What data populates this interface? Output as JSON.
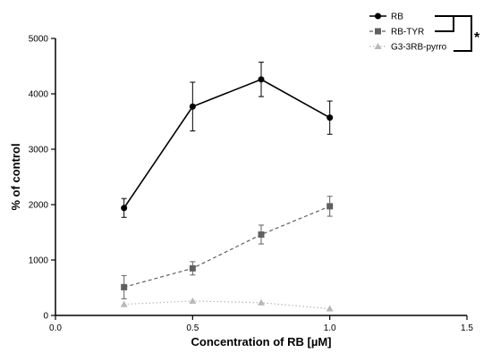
{
  "chart_data": {
    "type": "line",
    "xlabel": "Concentration of RB [µM]",
    "ylabel": "% of control",
    "xlim": [
      0,
      1.5
    ],
    "ylim": [
      0,
      5000
    ],
    "x_ticks": [
      "0.0",
      "0.5",
      "1.0",
      "1.5"
    ],
    "y_ticks": [
      "0",
      "1000",
      "2000",
      "3000",
      "4000",
      "5000"
    ],
    "grid": false,
    "legend_position": "top-right",
    "significance_marker": "*",
    "series": [
      {
        "name": "RB",
        "color": "#000000",
        "marker": "circle",
        "line_style": "solid",
        "points": [
          {
            "x": 0.25,
            "y": 1940,
            "err": 170
          },
          {
            "x": 0.5,
            "y": 3770,
            "err": 440
          },
          {
            "x": 0.75,
            "y": 4260,
            "err": 310
          },
          {
            "x": 1.0,
            "y": 3570,
            "err": 300
          }
        ]
      },
      {
        "name": "RB-TYR",
        "color": "#606060",
        "marker": "square",
        "line_style": "dashed",
        "points": [
          {
            "x": 0.25,
            "y": 510,
            "err": 210
          },
          {
            "x": 0.5,
            "y": 850,
            "err": 120
          },
          {
            "x": 0.75,
            "y": 1460,
            "err": 170
          },
          {
            "x": 1.0,
            "y": 1970,
            "err": 180
          }
        ]
      },
      {
        "name": "G3-3RB-pyrro",
        "color": "#b8b8b8",
        "marker": "triangle",
        "line_style": "dotted",
        "points": [
          {
            "x": 0.25,
            "y": 200,
            "err": 0
          },
          {
            "x": 0.5,
            "y": 260,
            "err": 0
          },
          {
            "x": 0.75,
            "y": 230,
            "err": 0
          },
          {
            "x": 1.0,
            "y": 120,
            "err": 0
          }
        ]
      }
    ]
  }
}
